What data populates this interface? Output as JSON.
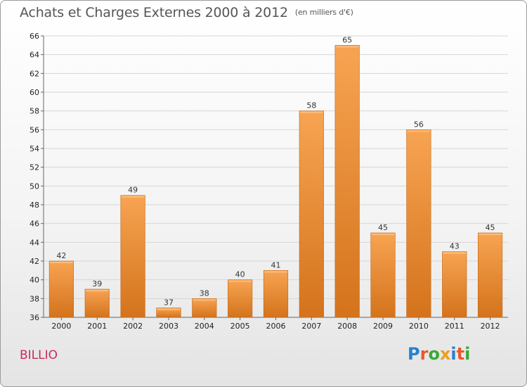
{
  "header": {
    "title": "Achats et Charges Externes 2000 à 2012",
    "subtitle": "(en milliers d'€)"
  },
  "footer": {
    "commune": "BILLIO",
    "logo_letters": [
      "P",
      "r",
      "o",
      "x",
      "i",
      "t",
      "i"
    ],
    "logo_colors": [
      "#2a7fcf",
      "#e8582a",
      "#3aa83a",
      "#e8a020",
      "#2a7fcf",
      "#e8582a",
      "#3aa83a"
    ]
  },
  "chart_data": {
    "type": "bar",
    "title": "Achats et Charges Externes 2000 à 2012",
    "subtitle": "(en milliers d'€)",
    "categories": [
      "2000",
      "2001",
      "2002",
      "2003",
      "2004",
      "2005",
      "2006",
      "2007",
      "2008",
      "2009",
      "2010",
      "2011",
      "2012"
    ],
    "values": [
      42,
      39,
      49,
      37,
      38,
      40,
      41,
      58,
      65,
      45,
      56,
      43,
      45
    ],
    "ylim": [
      36,
      66
    ],
    "yticks": [
      36,
      38,
      40,
      42,
      44,
      46,
      48,
      50,
      52,
      54,
      56,
      58,
      60,
      62,
      64,
      66
    ],
    "grid": true,
    "legend": false,
    "bar_color_light": "#f7a452",
    "bar_color_dark": "#d4731c",
    "data_labels": true
  }
}
